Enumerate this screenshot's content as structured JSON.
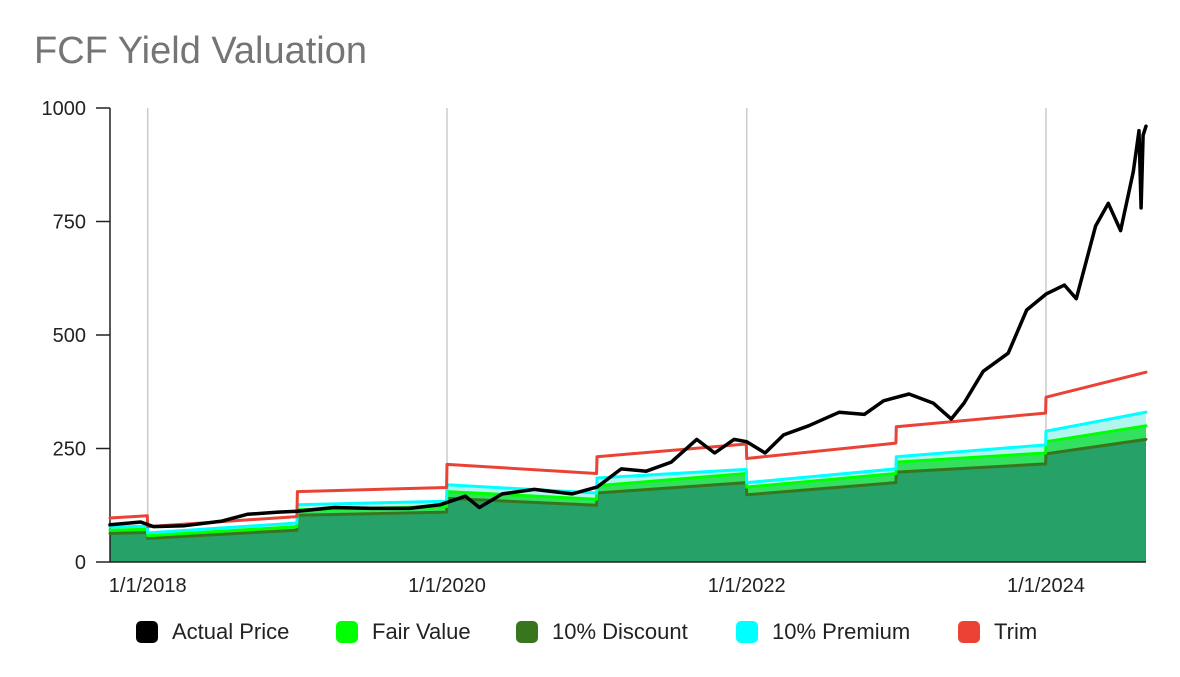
{
  "chart_data": {
    "type": "area",
    "title": "FCF Yield Valuation",
    "xlabel": "",
    "ylabel": "",
    "x_range": [
      "2017-10-01",
      "2024-09-01"
    ],
    "ylim": [
      0,
      1000
    ],
    "y_ticks": [
      0,
      250,
      500,
      750,
      1000
    ],
    "x_ticks": [
      {
        "date": "2018-01-01",
        "label": "1/1/2018"
      },
      {
        "date": "2020-01-01",
        "label": "1/1/2020"
      },
      {
        "date": "2022-01-01",
        "label": "1/1/2022"
      },
      {
        "date": "2024-01-01",
        "label": "1/1/2024"
      }
    ],
    "grid": true,
    "legend_position": "bottom",
    "series": [
      {
        "name": "Actual Price",
        "color": "#000000",
        "points": [
          [
            "2017-10-01",
            82
          ],
          [
            "2017-12-15",
            88
          ],
          [
            "2018-01-15",
            78
          ],
          [
            "2018-04-01",
            80
          ],
          [
            "2018-07-01",
            90
          ],
          [
            "2018-09-01",
            105
          ],
          [
            "2018-11-15",
            110
          ],
          [
            "2019-01-01",
            112
          ],
          [
            "2019-04-01",
            120
          ],
          [
            "2019-07-01",
            118
          ],
          [
            "2019-10-01",
            118
          ],
          [
            "2019-12-15",
            126
          ],
          [
            "2020-02-15",
            145
          ],
          [
            "2020-03-20",
            120
          ],
          [
            "2020-05-15",
            150
          ],
          [
            "2020-08-01",
            160
          ],
          [
            "2020-11-01",
            150
          ],
          [
            "2021-01-01",
            165
          ],
          [
            "2021-03-01",
            205
          ],
          [
            "2021-05-01",
            200
          ],
          [
            "2021-07-01",
            220
          ],
          [
            "2021-09-01",
            270
          ],
          [
            "2021-10-15",
            240
          ],
          [
            "2021-12-01",
            270
          ],
          [
            "2022-01-01",
            265
          ],
          [
            "2022-02-15",
            240
          ],
          [
            "2022-04-01",
            280
          ],
          [
            "2022-06-01",
            300
          ],
          [
            "2022-08-15",
            330
          ],
          [
            "2022-10-15",
            325
          ],
          [
            "2022-12-01",
            355
          ],
          [
            "2023-02-01",
            370
          ],
          [
            "2023-04-01",
            350
          ],
          [
            "2023-05-15",
            315
          ],
          [
            "2023-06-15",
            350
          ],
          [
            "2023-08-01",
            420
          ],
          [
            "2023-10-01",
            460
          ],
          [
            "2023-11-15",
            555
          ],
          [
            "2024-01-01",
            590
          ],
          [
            "2024-02-15",
            610
          ],
          [
            "2024-03-15",
            580
          ],
          [
            "2024-05-01",
            740
          ],
          [
            "2024-06-01",
            790
          ],
          [
            "2024-07-01",
            730
          ],
          [
            "2024-08-01",
            860
          ],
          [
            "2024-08-15",
            950
          ],
          [
            "2024-08-20",
            780
          ],
          [
            "2024-08-25",
            940
          ],
          [
            "2024-09-01",
            960
          ]
        ]
      },
      {
        "name": "Fair Value",
        "color": "#00ff00",
        "points": [
          [
            "2017-10-01",
            70
          ],
          [
            "2017-12-31",
            72
          ],
          [
            "2018-01-01",
            58
          ],
          [
            "2018-12-31",
            78
          ],
          [
            "2019-01-01",
            115
          ],
          [
            "2019-12-31",
            122
          ],
          [
            "2020-01-01",
            155
          ],
          [
            "2020-12-31",
            138
          ],
          [
            "2021-01-01",
            168
          ],
          [
            "2021-12-31",
            195
          ],
          [
            "2022-01-01",
            165
          ],
          [
            "2022-12-31",
            195
          ],
          [
            "2023-01-01",
            220
          ],
          [
            "2023-12-31",
            240
          ],
          [
            "2024-01-01",
            265
          ],
          [
            "2024-09-01",
            300
          ]
        ]
      },
      {
        "name": "10% Discount",
        "color": "#38761d",
        "points": [
          [
            "2017-10-01",
            63
          ],
          [
            "2017-12-31",
            65
          ],
          [
            "2018-01-01",
            52
          ],
          [
            "2018-12-31",
            70
          ],
          [
            "2019-01-01",
            103
          ],
          [
            "2019-12-31",
            110
          ],
          [
            "2020-01-01",
            140
          ],
          [
            "2020-12-31",
            125
          ],
          [
            "2021-01-01",
            152
          ],
          [
            "2021-12-31",
            175
          ],
          [
            "2022-01-01",
            148
          ],
          [
            "2022-12-31",
            175
          ],
          [
            "2023-01-01",
            198
          ],
          [
            "2023-12-31",
            216
          ],
          [
            "2024-01-01",
            238
          ],
          [
            "2024-09-01",
            270
          ]
        ]
      },
      {
        "name": "10% Premium",
        "color": "#00ffff",
        "points": [
          [
            "2017-10-01",
            77
          ],
          [
            "2017-12-31",
            79
          ],
          [
            "2018-01-01",
            64
          ],
          [
            "2018-12-31",
            86
          ],
          [
            "2019-01-01",
            126
          ],
          [
            "2019-12-31",
            134
          ],
          [
            "2020-01-01",
            170
          ],
          [
            "2020-12-31",
            152
          ],
          [
            "2021-01-01",
            185
          ],
          [
            "2021-12-31",
            204
          ],
          [
            "2022-01-01",
            175
          ],
          [
            "2022-12-31",
            205
          ],
          [
            "2023-01-01",
            232
          ],
          [
            "2023-12-31",
            258
          ],
          [
            "2024-01-01",
            288
          ],
          [
            "2024-09-01",
            330
          ]
        ]
      },
      {
        "name": "Trim",
        "color": "#ea4335",
        "points": [
          [
            "2017-10-01",
            97
          ],
          [
            "2017-12-31",
            102
          ],
          [
            "2018-01-01",
            78
          ],
          [
            "2018-12-31",
            100
          ],
          [
            "2019-01-01",
            155
          ],
          [
            "2019-12-31",
            164
          ],
          [
            "2020-01-01",
            215
          ],
          [
            "2020-12-31",
            195
          ],
          [
            "2021-01-01",
            232
          ],
          [
            "2021-12-31",
            260
          ],
          [
            "2022-01-01",
            228
          ],
          [
            "2022-12-31",
            262
          ],
          [
            "2023-01-01",
            298
          ],
          [
            "2023-12-31",
            328
          ],
          [
            "2024-01-01",
            363
          ],
          [
            "2024-09-01",
            418
          ]
        ]
      }
    ]
  },
  "fill_colors": {
    "below_discount": "#26a269",
    "discount_to_fair": "#34e060",
    "fair_to_premium": "#b2f5ef"
  }
}
